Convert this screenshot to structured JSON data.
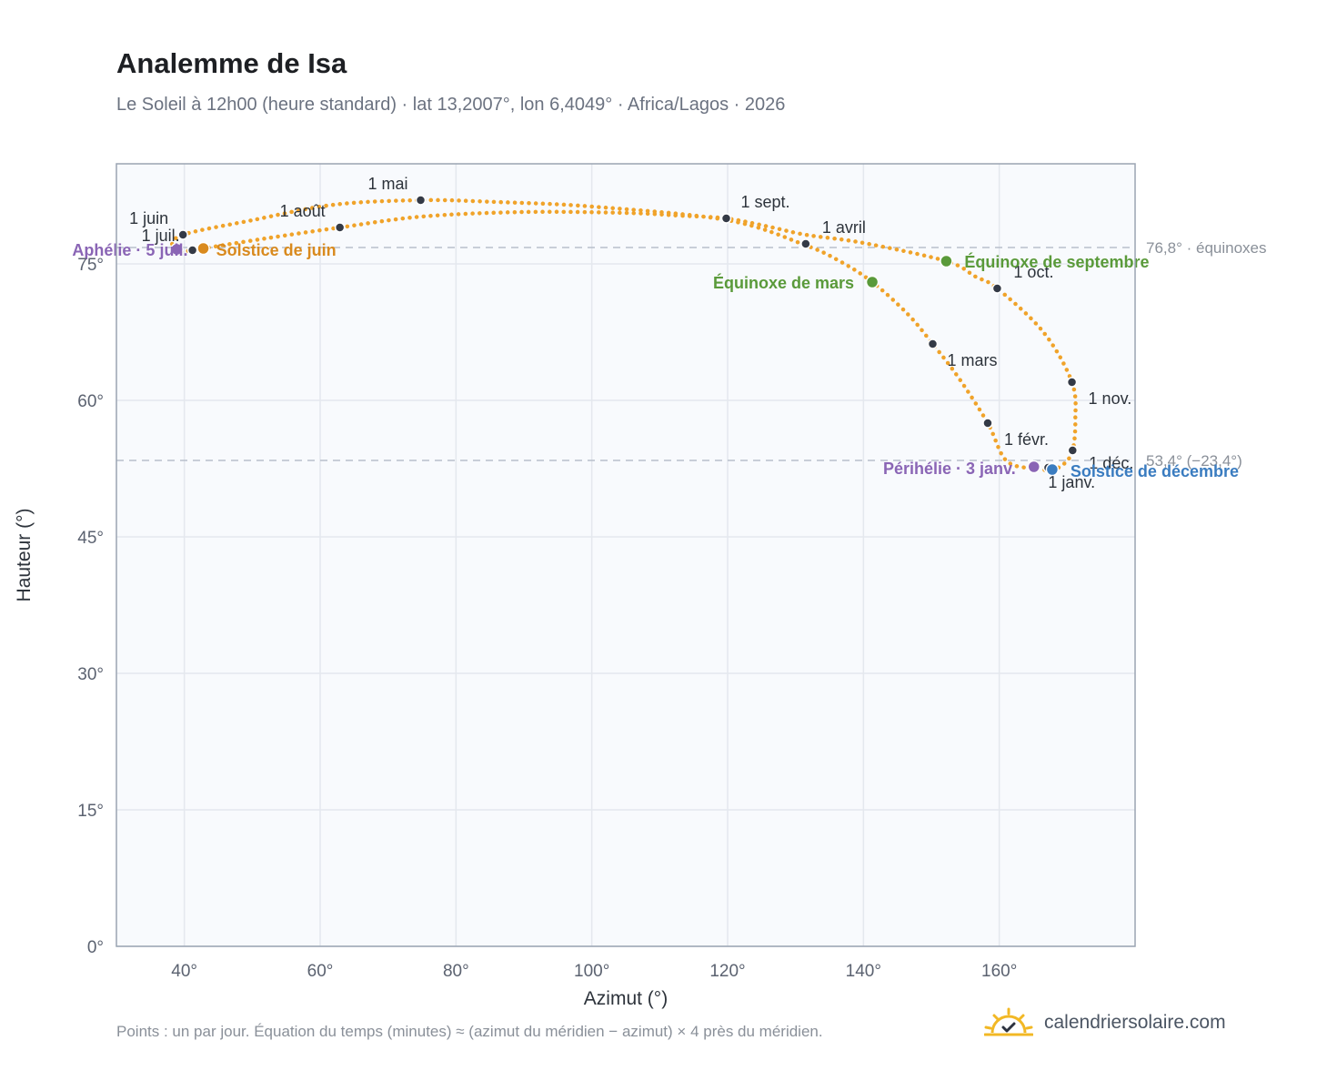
{
  "title": "Analemme de Isa",
  "subtitle": "Le Soleil à 12h00 (heure standard) · lat 13,2007°, lon 6,4049° · Africa/Lagos · 2026",
  "footnote": "Points : un par jour. Équation du temps (minutes) ≈ (azimut du méridien − azimut) × 4 près du méridien.",
  "brand": {
    "text": "calendriersolaire.com",
    "icon": "sun-check-icon"
  },
  "colors": {
    "curve": "#f0a32a",
    "month_marker": "#343a46",
    "equinox": "#5a9a3a",
    "june_solstice": "#d98a1e",
    "december_solstice": "#3a7cc0",
    "apsis": "#8a65b5",
    "plot_bg": "#f8fafd",
    "grid": "#e4e8ee",
    "frame": "#9aa4b2",
    "refline": "#b8c0cc"
  },
  "chart_data": {
    "type": "scatter",
    "xlabel": "Azimut (°)",
    "ylabel": "Hauteur (°)",
    "xlim": [
      30,
      180
    ],
    "ylim": [
      0,
      86
    ],
    "x_ticks": [
      40,
      60,
      80,
      100,
      120,
      140,
      160
    ],
    "x_tick_labels": [
      "40°",
      "60°",
      "80°",
      "100°",
      "120°",
      "140°",
      "160°"
    ],
    "y_ticks": [
      0,
      15,
      30,
      45,
      60,
      75
    ],
    "y_tick_labels": [
      "0°",
      "15°",
      "30°",
      "45°",
      "60°",
      "75°"
    ],
    "grid": true,
    "series": [
      {
        "type": "line",
        "style": "dotted-daily",
        "points": [
          [
            167.7,
            52.4
          ],
          [
            165.0,
            52.5
          ],
          [
            161.0,
            53.4
          ],
          [
            158.3,
            57.5
          ],
          [
            154.0,
            62.5
          ],
          [
            150.2,
            66.2
          ],
          [
            146.5,
            69.5
          ],
          [
            141.3,
            73.0
          ],
          [
            136.5,
            75.3
          ],
          [
            131.3,
            77.1
          ],
          [
            120.0,
            79.8
          ],
          [
            100.0,
            81.3
          ],
          [
            86.0,
            81.8
          ],
          [
            74.8,
            82.0
          ],
          [
            62.0,
            81.5
          ],
          [
            50.0,
            79.8
          ],
          [
            39.8,
            78.2
          ],
          [
            38.2,
            76.8
          ],
          [
            39.5,
            76.4
          ],
          [
            41.2,
            76.5
          ],
          [
            42.8,
            76.7
          ],
          [
            52.0,
            77.8
          ],
          [
            62.9,
            79.0
          ],
          [
            75.0,
            80.2
          ],
          [
            90.0,
            80.7
          ],
          [
            105.0,
            80.6
          ],
          [
            113.0,
            80.3
          ],
          [
            119.8,
            80.0
          ],
          [
            126.0,
            79.1
          ],
          [
            131.5,
            78.2
          ],
          [
            140.0,
            77.3
          ],
          [
            152.2,
            75.3
          ],
          [
            156.5,
            73.6
          ],
          [
            159.7,
            72.3
          ],
          [
            166.5,
            67.5
          ],
          [
            170.7,
            62.0
          ],
          [
            171.2,
            57.8
          ],
          [
            170.8,
            54.5
          ],
          [
            169.5,
            53.0
          ],
          [
            167.7,
            52.4
          ]
        ]
      }
    ],
    "month_markers": [
      {
        "label": "1 janv.",
        "x": 167.2,
        "y": 52.6
      },
      {
        "label": "1 févr.",
        "x": 158.3,
        "y": 57.5
      },
      {
        "label": "1 mars",
        "x": 150.2,
        "y": 66.2
      },
      {
        "label": "1 avril",
        "x": 131.5,
        "y": 77.2
      },
      {
        "label": "1 mai",
        "x": 74.8,
        "y": 82.0
      },
      {
        "label": "1 juin",
        "x": 39.8,
        "y": 78.2
      },
      {
        "label": "1 juil.",
        "x": 41.2,
        "y": 76.5
      },
      {
        "label": "1 août",
        "x": 62.9,
        "y": 79.0
      },
      {
        "label": "1 sept.",
        "x": 119.8,
        "y": 80.0
      },
      {
        "label": "1 oct.",
        "x": 159.7,
        "y": 72.3
      },
      {
        "label": "1 nov.",
        "x": 170.7,
        "y": 62.0
      },
      {
        "label": "1 déc.",
        "x": 170.8,
        "y": 54.5
      }
    ],
    "events": [
      {
        "label": "Équinoxe de mars",
        "kind": "equinox",
        "x": 141.3,
        "y": 73.0
      },
      {
        "label": "Équinoxe de septembre",
        "kind": "equinox",
        "x": 152.2,
        "y": 75.3
      },
      {
        "label": "Solstice de juin",
        "kind": "june_solstice",
        "x": 42.8,
        "y": 76.7
      },
      {
        "label": "Solstice de décembre",
        "kind": "december_solstice",
        "x": 167.8,
        "y": 52.4
      },
      {
        "label": "Aphélie · 5 juil.",
        "kind": "apsis",
        "x": 38.9,
        "y": 76.6
      },
      {
        "label": "Périhélie · 3 janv.",
        "kind": "apsis",
        "x": 165.1,
        "y": 52.7
      }
    ],
    "reference_lines": [
      {
        "y": 76.8,
        "label": "76,8° · équinoxes"
      },
      {
        "y": 53.4,
        "label": "53,4° (−23,4°)"
      }
    ]
  }
}
